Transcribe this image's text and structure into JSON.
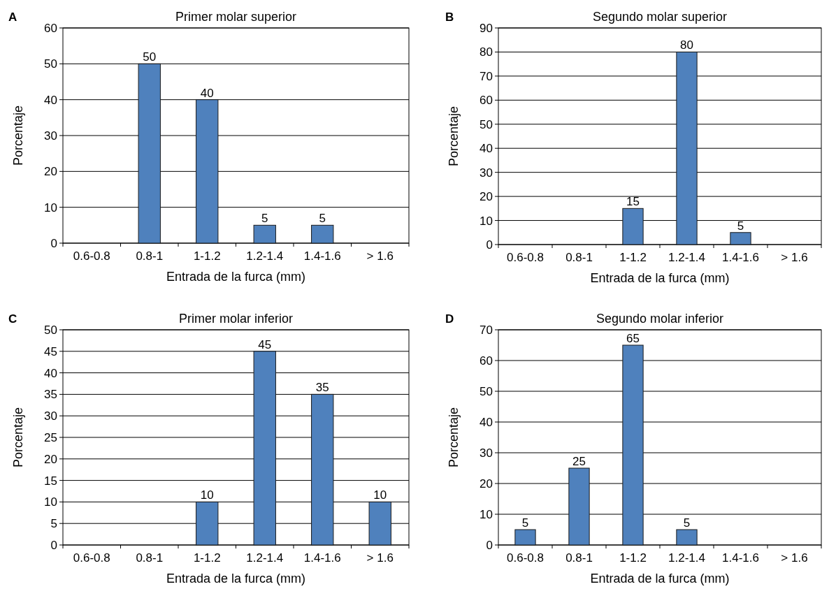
{
  "chart_data": [
    {
      "type": "bar",
      "title": "Primer molar superior",
      "xlabel": "Entrada de la furca (mm)",
      "ylabel": "Porcentaje",
      "annotations": [
        "A"
      ],
      "categories": [
        "0.6-0.8",
        "0.8-1",
        "1-1.2",
        "1.2-1.4",
        "1.4-1.6",
        "> 1.6"
      ],
      "series": [
        {
          "color": "#4f81bd",
          "values": [
            0,
            50,
            40,
            5,
            5,
            0
          ],
          "value_labels": [
            null,
            "50",
            "40",
            "5",
            "5",
            null
          ]
        }
      ],
      "ylim": [
        0,
        60
      ],
      "yticks": [
        0,
        10,
        20,
        30,
        40,
        50,
        60
      ],
      "grid": "y"
    },
    {
      "type": "bar",
      "title": "Segundo molar superior",
      "xlabel": "Entrada de la furca (mm)",
      "ylabel": "Porcentaje",
      "annotations": [
        "B"
      ],
      "categories": [
        "0.6-0.8",
        "0.8-1",
        "1-1.2",
        "1.2-1.4",
        "1.4-1.6",
        "> 1.6"
      ],
      "series": [
        {
          "color": "#4f81bd",
          "values": [
            0,
            0,
            15,
            80,
            5,
            0
          ],
          "value_labels": [
            null,
            null,
            "15",
            "80",
            "5",
            null
          ]
        }
      ],
      "ylim": [
        0,
        90
      ],
      "yticks": [
        0,
        10,
        20,
        30,
        40,
        50,
        60,
        70,
        80,
        90
      ],
      "grid": "y"
    },
    {
      "type": "bar",
      "title": "Primer molar inferior",
      "xlabel": "Entrada de la furca (mm)",
      "ylabel": "Porcentaje",
      "annotations": [
        "C"
      ],
      "categories": [
        "0.6-0.8",
        "0.8-1",
        "1-1.2",
        "1.2-1.4",
        "1.4-1.6",
        "> 1.6"
      ],
      "series": [
        {
          "color": "#4f81bd",
          "values": [
            0,
            0,
            10,
            45,
            35,
            10
          ],
          "value_labels": [
            null,
            null,
            "10",
            "45",
            "35",
            "10"
          ]
        }
      ],
      "ylim": [
        0,
        50
      ],
      "yticks": [
        0,
        5,
        10,
        15,
        20,
        25,
        30,
        35,
        40,
        45,
        50
      ],
      "grid": "y"
    },
    {
      "type": "bar",
      "title": "Segundo molar inferior",
      "xlabel": "Entrada de la furca (mm)",
      "ylabel": "Porcentaje",
      "annotations": [
        "D"
      ],
      "categories": [
        "0.6-0.8",
        "0.8-1",
        "1-1.2",
        "1.2-1.4",
        "1.4-1.6",
        "> 1.6"
      ],
      "series": [
        {
          "color": "#4f81bd",
          "values": [
            5,
            25,
            65,
            5,
            0,
            0
          ],
          "value_labels": [
            "5",
            "25",
            "65",
            "5",
            null,
            null
          ]
        }
      ],
      "ylim": [
        0,
        70
      ],
      "yticks": [
        0,
        10,
        20,
        30,
        40,
        50,
        60,
        70
      ],
      "grid": "y"
    }
  ]
}
